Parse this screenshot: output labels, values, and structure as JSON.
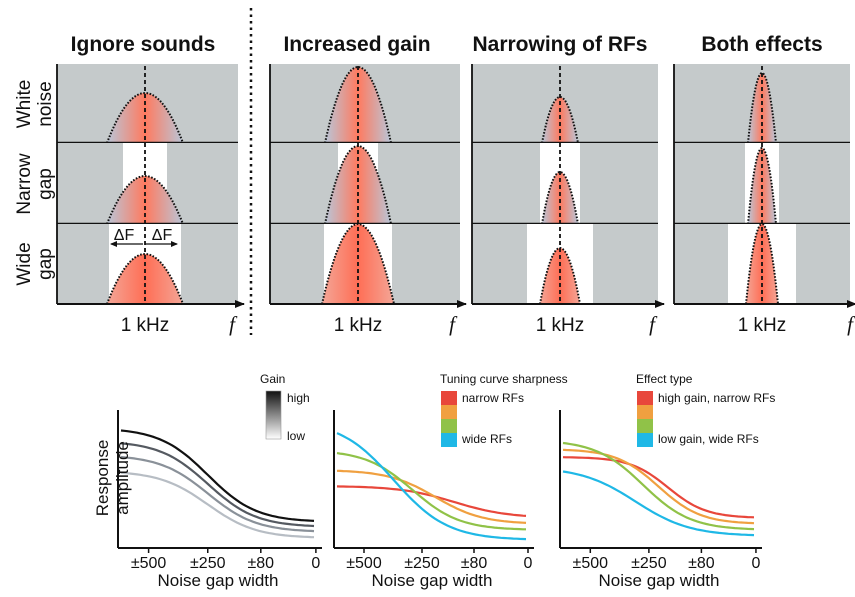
{
  "top_panel": {
    "titles": [
      "Ignore sounds",
      "Increased gain",
      "Narrowing of RFs",
      "Both effects"
    ],
    "row_labels": [
      {
        "line1": "White",
        "line2": "noise"
      },
      {
        "line1": "Narrow",
        "line2": "gap"
      },
      {
        "line1": "Wide",
        "line2": "gap"
      }
    ],
    "x_center_label": "1 kHz",
    "x_axis_symbol": "f",
    "delta_label": "ΔF"
  },
  "bottom_panel": {
    "xlabel": "Noise gap width",
    "ylabel_line1": "Response",
    "ylabel_line2": "amplitude",
    "ticks": [
      "±500",
      "±250",
      "±80",
      "0"
    ],
    "legends": [
      {
        "title": "Gain",
        "items": [
          "high",
          "low"
        ]
      },
      {
        "title": "Tuning curve sharpness",
        "items": [
          "narrow RFs",
          "wide RFs"
        ]
      },
      {
        "title": "Effect type",
        "items": [
          "high gain, narrow RFs",
          "low gain, wide RFs"
        ]
      }
    ]
  },
  "colors": {
    "noise_gray": "#c5cacb",
    "gain_curves": [
      "#111111",
      "#555a61",
      "#8a9199",
      "#b7bdc4"
    ],
    "type_curves": [
      "#e8473b",
      "#f0a040",
      "#90c248",
      "#1fb8e6"
    ]
  }
}
